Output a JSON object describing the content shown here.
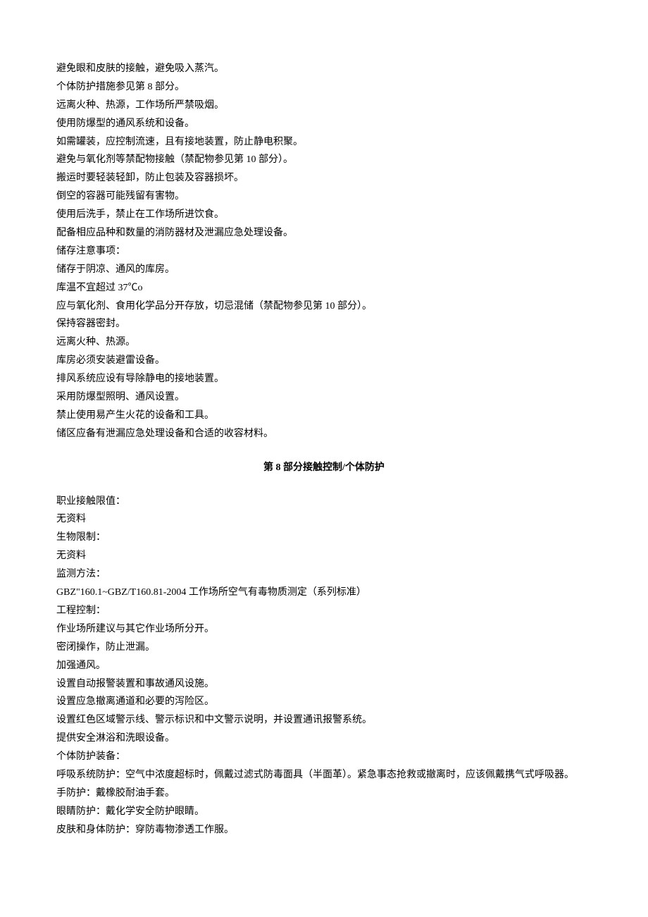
{
  "section7_tail": {
    "lines": [
      "避免眼和皮肤的接触，避免吸入蒸汽。",
      "个体防护措施参见第 8 部分。",
      "远离火种、热源，工作场所严禁吸烟。",
      "使用防爆型的通风系统和设备。",
      "如需罐装，应控制流速，且有接地装置，防止静电积聚。",
      "避免与氧化剂等禁配物接触（禁配物参见第 10 部分）。",
      "搬运时要轻装轻卸，防止包装及容器损坏。",
      "倒空的容器可能残留有害物。",
      "使用后洗手，禁止在工作场所进饮食。",
      "配备相应品种和数量的消防器材及泄漏应急处理设备。",
      "储存注意事项：",
      "储存于阴凉、通风的库房。",
      "库温不宜超过 37℃o",
      "应与氧化剂、食用化学品分开存放，切忌混储（禁配物参见第 10 部分）。",
      "保持容器密封。",
      "远离火种、热源。",
      "库房必须安装避雷设备。",
      "排风系统应设有导除静电的接地装置。",
      "采用防爆型照明、通风设置。",
      "禁止使用易产生火花的设备和工具。",
      "储区应备有泄漏应急处理设备和合适的收容材料。"
    ]
  },
  "section8": {
    "title": "第 8 部分接触控制/个体防护",
    "lines": [
      "职业接触限值：",
      "无资料",
      "生物限制：",
      "无资料",
      "监测方法：",
      "GBZ\"160.1~GBZ/T160.81-2004 工作场所空气有毒物质测定（系列标准）",
      "工程控制：",
      "作业场所建议与其它作业场所分开。",
      "密闭操作，防止泄漏。",
      "加强通风。",
      "设置自动报警装置和事故通风设施。",
      "设置应急撤离通道和必要的泻险区。",
      "设置红色区域警示线、警示标识和中文警示说明，并设置通讯报警系统。",
      "提供安全淋浴和洗眼设备。",
      "个体防护装备：",
      "呼吸系统防护：空气中浓度超标时，佩戴过滤式防毒面具（半面革）。紧急事态抢救或撤离时，应该佩戴携气式呼吸器。",
      "手防护：戴橡胶耐油手套。",
      "眼睛防护：戴化学安全防护眼睛。",
      "皮肤和身体防护：穿防毒物渗透工作服。"
    ]
  }
}
